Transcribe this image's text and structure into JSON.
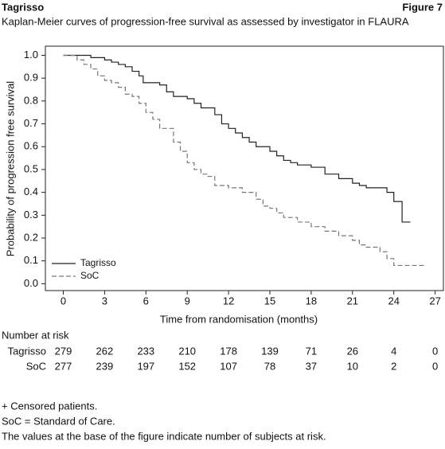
{
  "header": {
    "title": "Tagrisso",
    "figure": "Figure 7"
  },
  "chart_data": {
    "type": "step",
    "title": "Kaplan-Meier curves of progression-free survival as assessed by investigator in FLAURA",
    "x_label": "Time from randomisation (months)",
    "y_label": "Probability of  progression free survival",
    "xlim": [
      -1.3,
      27.6
    ],
    "ylim": [
      -0.03,
      1.04
    ],
    "xticks": [
      0,
      3,
      6,
      9,
      12,
      15,
      18,
      21,
      24,
      27
    ],
    "yticks": [
      {
        "value": 0,
        "label": "0.0"
      },
      0.1,
      0.2,
      0.3,
      0.4,
      0.5,
      0.6,
      0.7,
      0.8,
      0.9,
      {
        "value": 1,
        "label": "1.0"
      }
    ],
    "legend": "lower left",
    "series": [
      {
        "name": "Tagrisso",
        "color": "#222222",
        "line_style": "solid",
        "x": [
          0,
          2,
          3,
          3.5,
          4,
          4.5,
          5,
          5.5,
          5.8,
          7,
          7.5,
          8,
          9,
          9.5,
          10,
          11,
          11.5,
          12,
          12.5,
          13,
          13.5,
          14,
          15,
          15.5,
          16,
          16.5,
          17,
          18,
          19,
          20,
          21,
          21.5,
          22,
          23.5,
          24,
          24.6,
          25.2
        ],
        "values": [
          1.0,
          0.99,
          0.98,
          0.97,
          0.96,
          0.95,
          0.93,
          0.91,
          0.88,
          0.87,
          0.84,
          0.82,
          0.81,
          0.79,
          0.77,
          0.74,
          0.7,
          0.68,
          0.66,
          0.64,
          0.62,
          0.6,
          0.58,
          0.56,
          0.54,
          0.53,
          0.52,
          0.51,
          0.48,
          0.46,
          0.44,
          0.43,
          0.42,
          0.4,
          0.36,
          0.27,
          0.27
        ]
      },
      {
        "name": "SoC",
        "color": "#777777",
        "line_style": "dashed",
        "x": [
          0,
          1,
          1.5,
          2,
          2.5,
          3,
          3.5,
          4,
          4.5,
          5,
          5.5,
          6,
          6.5,
          7,
          8,
          8.5,
          9,
          9.5,
          10,
          10.5,
          11,
          12,
          13,
          14,
          14.5,
          15,
          15.5,
          16,
          17,
          18,
          19,
          20,
          21,
          21.5,
          22,
          23,
          23.5,
          24,
          26.2
        ],
        "values": [
          1.0,
          0.98,
          0.96,
          0.94,
          0.91,
          0.89,
          0.88,
          0.86,
          0.83,
          0.82,
          0.79,
          0.75,
          0.72,
          0.68,
          0.62,
          0.58,
          0.53,
          0.5,
          0.48,
          0.47,
          0.43,
          0.42,
          0.4,
          0.37,
          0.34,
          0.33,
          0.31,
          0.29,
          0.27,
          0.25,
          0.23,
          0.21,
          0.19,
          0.17,
          0.16,
          0.14,
          0.11,
          0.08,
          0.08
        ]
      }
    ]
  },
  "risk_table": {
    "title": "Number at risk",
    "rows": [
      {
        "name": "Tagrisso",
        "values": [
          279,
          262,
          233,
          210,
          178,
          139,
          71,
          26,
          4,
          0
        ]
      },
      {
        "name": "SoC",
        "values": [
          277,
          239,
          197,
          152,
          107,
          78,
          37,
          10,
          2,
          0
        ]
      }
    ]
  },
  "notes": [
    "+ Censored patients.",
    "SoC = Standard of Care.",
    "The values at the base of the figure indicate number of subjects at risk."
  ]
}
